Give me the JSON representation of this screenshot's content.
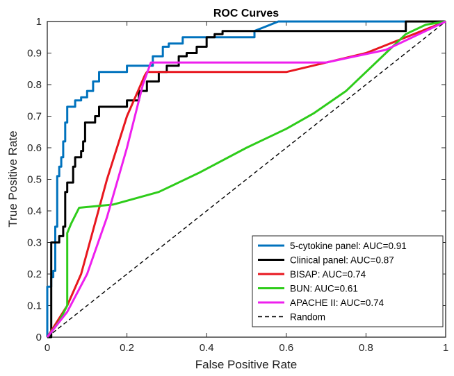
{
  "chart_data": {
    "type": "line",
    "title": "ROC Curves",
    "xlabel": "False Positive Rate",
    "ylabel": "True Positive Rate",
    "xlim": [
      0,
      1
    ],
    "ylim": [
      0,
      1
    ],
    "xticks": [
      0,
      0.2,
      0.4,
      0.6,
      0.8,
      1
    ],
    "xtick_labels": [
      "0",
      "0.2",
      "0.4",
      "0.6",
      "0.8",
      "1"
    ],
    "yticks": [
      0,
      0.1,
      0.2,
      0.3,
      0.4,
      0.5,
      0.6,
      0.7,
      0.8,
      0.9,
      1
    ],
    "ytick_labels": [
      "0",
      "0.1",
      "0.2",
      "0.3",
      "0.4",
      "0.5",
      "0.6",
      "0.7",
      "0.8",
      "0.9",
      "1"
    ],
    "grid": false,
    "legend_position": "bottom-right",
    "series": [
      {
        "name": "5-cytokine panel: AUC=0.91",
        "color": "#0072BD",
        "x": [
          0,
          0,
          0.01,
          0.01,
          0.015,
          0.015,
          0.02,
          0.02,
          0.025,
          0.025,
          0.03,
          0.03,
          0.035,
          0.035,
          0.04,
          0.04,
          0.045,
          0.045,
          0.05,
          0.05,
          0.07,
          0.07,
          0.085,
          0.085,
          0.1,
          0.1,
          0.115,
          0.115,
          0.13,
          0.13,
          0.2,
          0.2,
          0.265,
          0.265,
          0.29,
          0.29,
          0.305,
          0.305,
          0.34,
          0.34,
          0.42,
          0.42,
          0.52,
          0.52,
          0.58,
          1
        ],
        "y": [
          0,
          0.16,
          0.16,
          0.19,
          0.19,
          0.21,
          0.21,
          0.35,
          0.35,
          0.51,
          0.51,
          0.54,
          0.54,
          0.57,
          0.57,
          0.62,
          0.62,
          0.68,
          0.68,
          0.73,
          0.73,
          0.75,
          0.75,
          0.76,
          0.76,
          0.78,
          0.78,
          0.81,
          0.81,
          0.84,
          0.84,
          0.86,
          0.86,
          0.89,
          0.89,
          0.92,
          0.92,
          0.93,
          0.93,
          0.95,
          0.95,
          0.95,
          0.95,
          0.97,
          1,
          1
        ]
      },
      {
        "name": "Clinical panel: AUC=0.87",
        "color": "#000000",
        "x": [
          0,
          0.01,
          0.01,
          0.03,
          0.03,
          0.04,
          0.04,
          0.045,
          0.045,
          0.05,
          0.05,
          0.065,
          0.065,
          0.07,
          0.07,
          0.085,
          0.085,
          0.09,
          0.09,
          0.095,
          0.095,
          0.12,
          0.12,
          0.13,
          0.13,
          0.2,
          0.2,
          0.23,
          0.23,
          0.25,
          0.25,
          0.28,
          0.28,
          0.3,
          0.3,
          0.33,
          0.33,
          0.35,
          0.35,
          0.375,
          0.375,
          0.4,
          0.4,
          0.42,
          0.42,
          0.44,
          0.44,
          0.47,
          0.47,
          0.9,
          0.9,
          1
        ],
        "y": [
          0,
          0,
          0.3,
          0.3,
          0.32,
          0.32,
          0.35,
          0.35,
          0.46,
          0.46,
          0.49,
          0.49,
          0.54,
          0.54,
          0.57,
          0.57,
          0.59,
          0.59,
          0.62,
          0.62,
          0.68,
          0.68,
          0.7,
          0.7,
          0.73,
          0.73,
          0.75,
          0.75,
          0.78,
          0.78,
          0.81,
          0.81,
          0.84,
          0.84,
          0.86,
          0.86,
          0.89,
          0.89,
          0.9,
          0.9,
          0.92,
          0.92,
          0.95,
          0.95,
          0.96,
          0.96,
          0.97,
          0.97,
          0.97,
          0.97,
          1,
          1
        ]
      },
      {
        "name": "BISAP: AUC=0.74",
        "color": "#E8171F",
        "x": [
          0,
          0.05,
          0.085,
          0.15,
          0.2,
          0.245,
          0.25,
          0.6,
          0.8,
          1
        ],
        "y": [
          0,
          0.1,
          0.2,
          0.5,
          0.7,
          0.83,
          0.84,
          0.84,
          0.9,
          1
        ]
      },
      {
        "name": "BUN: AUC=0.61",
        "color": "#2ECC1A",
        "x": [
          0,
          0.03,
          0.05,
          0.05,
          0.06,
          0.08,
          0.165,
          0.28,
          0.38,
          0.5,
          0.6,
          0.67,
          0.75,
          0.8,
          0.85,
          0.9,
          0.95,
          1
        ],
        "y": [
          0,
          0.05,
          0.1,
          0.33,
          0.36,
          0.41,
          0.42,
          0.46,
          0.52,
          0.6,
          0.66,
          0.71,
          0.78,
          0.84,
          0.9,
          0.96,
          0.99,
          1
        ]
      },
      {
        "name": "APACHE II: AUC=0.74",
        "color": "#EE1FEE",
        "x": [
          0,
          0.05,
          0.1,
          0.15,
          0.2,
          0.24,
          0.26,
          0.7,
          0.85,
          1
        ],
        "y": [
          0,
          0.08,
          0.2,
          0.38,
          0.6,
          0.8,
          0.87,
          0.87,
          0.91,
          1
        ]
      },
      {
        "name": "Random",
        "color": "#000000",
        "dashed": true,
        "x": [
          0,
          1
        ],
        "y": [
          0,
          1
        ]
      }
    ]
  }
}
